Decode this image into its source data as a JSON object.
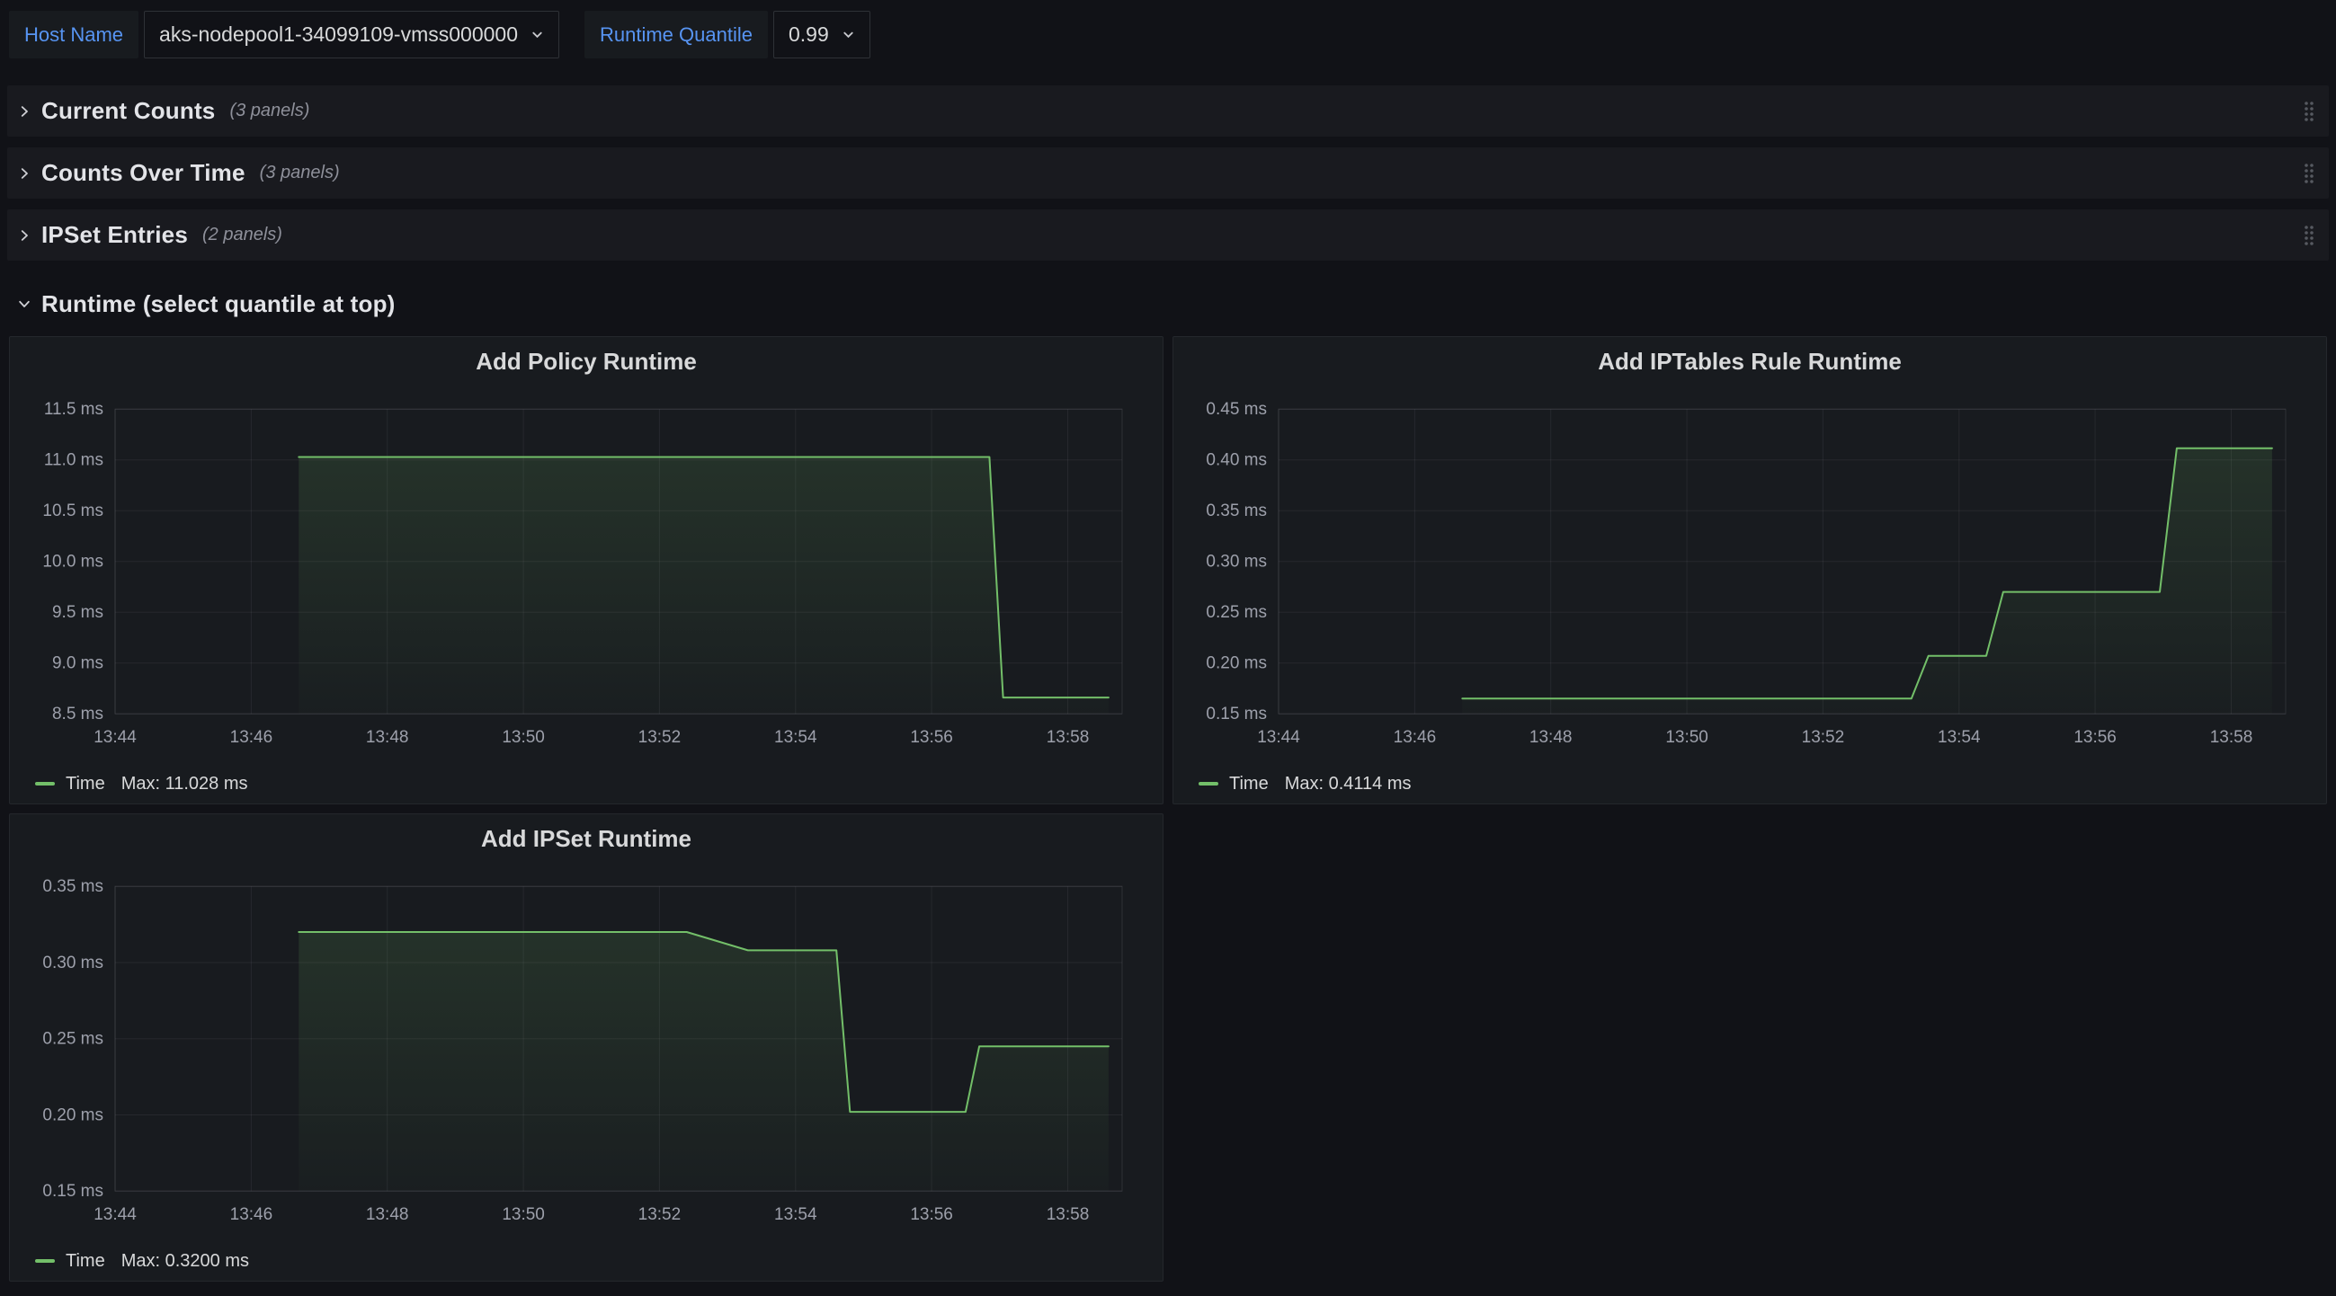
{
  "topbar": {
    "host": {
      "label": "Host Name",
      "value": "aks-nodepool1-34099109-vmss000000"
    },
    "quantile": {
      "label": "Runtime Quantile",
      "value": "0.99"
    }
  },
  "rows": [
    {
      "title": "Current Counts",
      "count": "(3 panels)",
      "collapsed": true
    },
    {
      "title": "Counts Over Time",
      "count": "(3 panels)",
      "collapsed": true
    },
    {
      "title": "IPSet Entries",
      "count": "(2 panels)",
      "collapsed": true
    },
    {
      "title": "Runtime (select quantile at top)",
      "count": "",
      "collapsed": false
    }
  ],
  "icons": {
    "variable_caret": "chevron-down",
    "row_collapsed": "chevron-right",
    "row_expanded": "chevron-down",
    "row_drag": "drag-handle-dots"
  },
  "colors": {
    "page_bg": "#111217",
    "panel_bg": "#181B1F",
    "accent_blue": "#5794F2",
    "series_green": "#73BF69",
    "axis_text": "#9DA0AB"
  },
  "chart_data": [
    {
      "type": "line",
      "title": "Add Policy Runtime",
      "x_unit": "minutes since 13:00",
      "y_unit": "ms",
      "x_range": [
        44,
        58.8
      ],
      "y_range": [
        8.5,
        11.5
      ],
      "grid": true,
      "legend_position": "bottom-left",
      "x_ticks": [
        {
          "v": 44,
          "label": "13:44"
        },
        {
          "v": 46,
          "label": "13:46"
        },
        {
          "v": 48,
          "label": "13:48"
        },
        {
          "v": 50,
          "label": "13:50"
        },
        {
          "v": 52,
          "label": "13:52"
        },
        {
          "v": 54,
          "label": "13:54"
        },
        {
          "v": 56,
          "label": "13:56"
        },
        {
          "v": 58,
          "label": "13:58"
        }
      ],
      "y_ticks": [
        {
          "v": 8.5,
          "label": "8.5 ms"
        },
        {
          "v": 9.0,
          "label": "9.0 ms"
        },
        {
          "v": 9.5,
          "label": "9.5 ms"
        },
        {
          "v": 10.0,
          "label": "10.0 ms"
        },
        {
          "v": 10.5,
          "label": "10.5 ms"
        },
        {
          "v": 11.0,
          "label": "11.0 ms"
        },
        {
          "v": 11.5,
          "label": "11.5 ms"
        }
      ],
      "series": [
        {
          "name": "Time",
          "color": "#73BF69",
          "points": [
            [
              46.7,
              11.028
            ],
            [
              56.85,
              11.028
            ],
            [
              57.05,
              8.66
            ],
            [
              58.6,
              8.66
            ]
          ]
        }
      ],
      "legend": {
        "name": "Time",
        "max": "Max: 11.028 ms"
      }
    },
    {
      "type": "line",
      "title": "Add IPTables Rule Runtime",
      "x_unit": "minutes since 13:00",
      "y_unit": "ms",
      "x_range": [
        44,
        58.8
      ],
      "y_range": [
        0.15,
        0.45
      ],
      "grid": true,
      "legend_position": "bottom-left",
      "x_ticks": [
        {
          "v": 44,
          "label": "13:44"
        },
        {
          "v": 46,
          "label": "13:46"
        },
        {
          "v": 48,
          "label": "13:48"
        },
        {
          "v": 50,
          "label": "13:50"
        },
        {
          "v": 52,
          "label": "13:52"
        },
        {
          "v": 54,
          "label": "13:54"
        },
        {
          "v": 56,
          "label": "13:56"
        },
        {
          "v": 58,
          "label": "13:58"
        }
      ],
      "y_ticks": [
        {
          "v": 0.15,
          "label": "0.15 ms"
        },
        {
          "v": 0.2,
          "label": "0.20 ms"
        },
        {
          "v": 0.25,
          "label": "0.25 ms"
        },
        {
          "v": 0.3,
          "label": "0.30 ms"
        },
        {
          "v": 0.35,
          "label": "0.35 ms"
        },
        {
          "v": 0.4,
          "label": "0.40 ms"
        },
        {
          "v": 0.45,
          "label": "0.45 ms"
        }
      ],
      "series": [
        {
          "name": "Time",
          "color": "#73BF69",
          "points": [
            [
              46.7,
              0.165
            ],
            [
              53.3,
              0.165
            ],
            [
              53.55,
              0.207
            ],
            [
              54.4,
              0.207
            ],
            [
              54.65,
              0.27
            ],
            [
              56.95,
              0.27
            ],
            [
              57.2,
              0.4114
            ],
            [
              58.6,
              0.4114
            ]
          ]
        }
      ],
      "legend": {
        "name": "Time",
        "max": "Max: 0.4114 ms"
      }
    },
    {
      "type": "line",
      "title": "Add IPSet Runtime",
      "x_unit": "minutes since 13:00",
      "y_unit": "ms",
      "x_range": [
        44,
        58.8
      ],
      "y_range": [
        0.15,
        0.35
      ],
      "grid": true,
      "legend_position": "bottom-left",
      "x_ticks": [
        {
          "v": 44,
          "label": "13:44"
        },
        {
          "v": 46,
          "label": "13:46"
        },
        {
          "v": 48,
          "label": "13:48"
        },
        {
          "v": 50,
          "label": "13:50"
        },
        {
          "v": 52,
          "label": "13:52"
        },
        {
          "v": 54,
          "label": "13:54"
        },
        {
          "v": 56,
          "label": "13:56"
        },
        {
          "v": 58,
          "label": "13:58"
        }
      ],
      "y_ticks": [
        {
          "v": 0.15,
          "label": "0.15 ms"
        },
        {
          "v": 0.2,
          "label": "0.20 ms"
        },
        {
          "v": 0.25,
          "label": "0.25 ms"
        },
        {
          "v": 0.3,
          "label": "0.30 ms"
        },
        {
          "v": 0.35,
          "label": "0.35 ms"
        }
      ],
      "series": [
        {
          "name": "Time",
          "color": "#73BF69",
          "points": [
            [
              46.7,
              0.32
            ],
            [
              52.4,
              0.32
            ],
            [
              53.3,
              0.308
            ],
            [
              54.6,
              0.308
            ],
            [
              54.8,
              0.202
            ],
            [
              56.5,
              0.202
            ],
            [
              56.7,
              0.245
            ],
            [
              58.6,
              0.245
            ]
          ]
        }
      ],
      "legend": {
        "name": "Time",
        "max": "Max: 0.3200 ms"
      }
    }
  ]
}
